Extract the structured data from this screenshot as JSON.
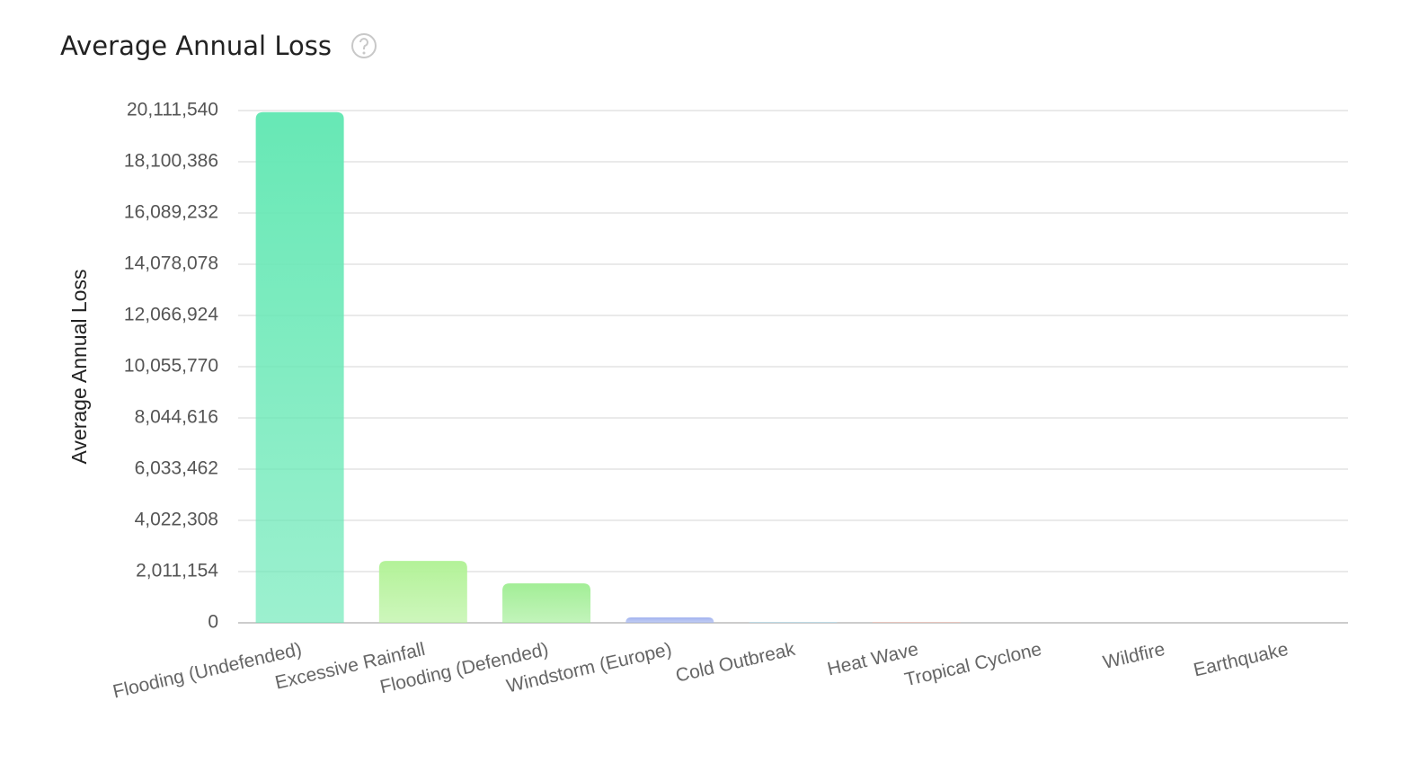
{
  "chart_data": {
    "type": "bar",
    "title": "Average Annual Loss",
    "y_label": "Average Annual Loss",
    "categories": [
      "Flooding (Undefended)",
      "Excessive Rainfall",
      "Flooding (Defended)",
      "Windstorm (Europe)",
      "Cold Outbreak",
      "Heat Wave",
      "Tropical Cyclone",
      "Wildfire",
      "Earthquake"
    ],
    "values": [
      20050000,
      2430000,
      1550000,
      210000,
      30000,
      20000,
      0,
      0,
      0
    ],
    "colors": [
      "#67e8b5",
      "#b3f298",
      "#a2ee96",
      "#a3b4ef",
      "#b7dcea",
      "#f4b3a6",
      "#cccccc",
      "#cccccc",
      "#cccccc"
    ],
    "ylim": [
      0,
      20111540
    ],
    "yticks": [
      0,
      {
        "value": 2011154,
        "label": "2,011,154"
      },
      {
        "value": 4022308,
        "label": "4,022,308"
      },
      {
        "value": 6033462,
        "label": "6,033,462"
      },
      {
        "value": 8044616,
        "label": "8,044,616"
      },
      {
        "value": 10055770,
        "label": "10,055,770"
      },
      {
        "value": 12066924,
        "label": "12,066,924"
      },
      {
        "value": 14078078,
        "label": "14,078,078"
      },
      {
        "value": 16089232,
        "label": "16,089,232"
      },
      {
        "value": 18100386,
        "label": "18,100,386"
      },
      {
        "value": 20111540,
        "label": "20,111,540"
      }
    ],
    "grid": true
  }
}
